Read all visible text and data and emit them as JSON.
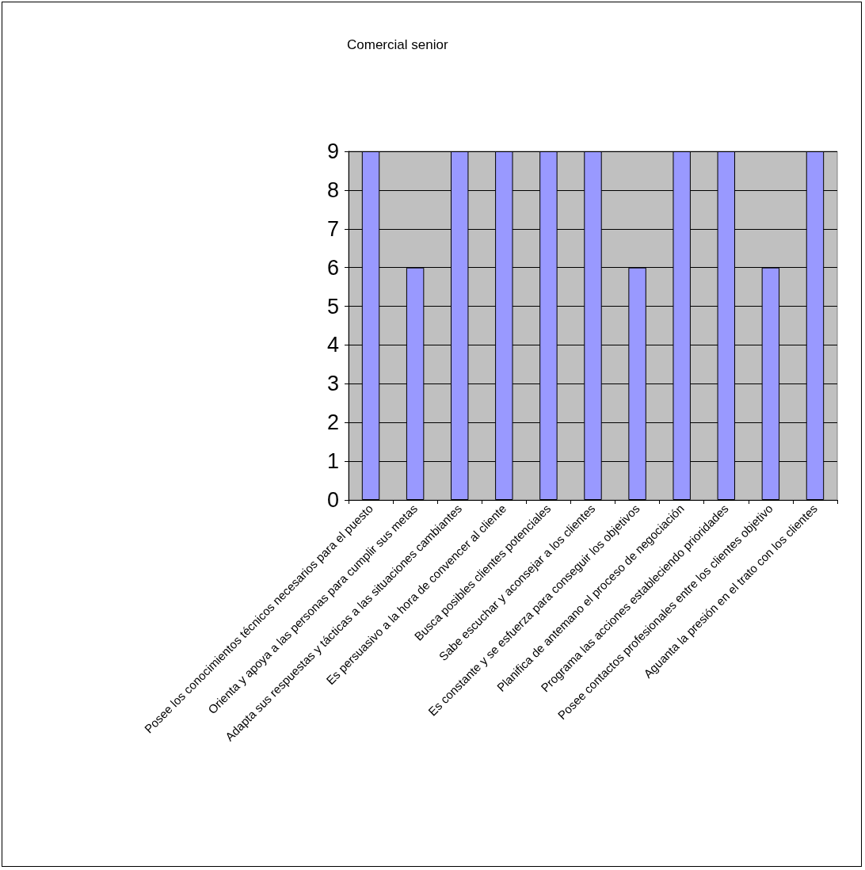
{
  "chart_data": {
    "type": "bar",
    "title": "Comercial senior",
    "categories": [
      "Posee los conocimientos técnicos necesarios para el puesto",
      "Orienta y apoya a las personas para cumplir sus metas",
      "Adapta sus respuestas y tácticas a las situaciones cambiantes",
      "Es persuasivo a la hora de convencer al cliente",
      "Busca posibles clientes potenciales",
      "Sabe escuchar y aconsejar a los clientes",
      "Es constante y se esfuerza para conseguir los objetivos",
      "Planifica de antemano el proceso de negociación",
      "Programa las acciones estableciendo prioridades",
      "Posee contactos profesionales entre los clientes objetivo",
      "Aguanta la presión en el trato con los clientes"
    ],
    "values": [
      9,
      6,
      9,
      9,
      9,
      9,
      6,
      9,
      9,
      6,
      9
    ],
    "color": "#9999ff",
    "ylim": [
      0,
      9
    ],
    "yticks": [
      0,
      1,
      2,
      3,
      4,
      5,
      6,
      7,
      8,
      9
    ],
    "grid": "y"
  }
}
